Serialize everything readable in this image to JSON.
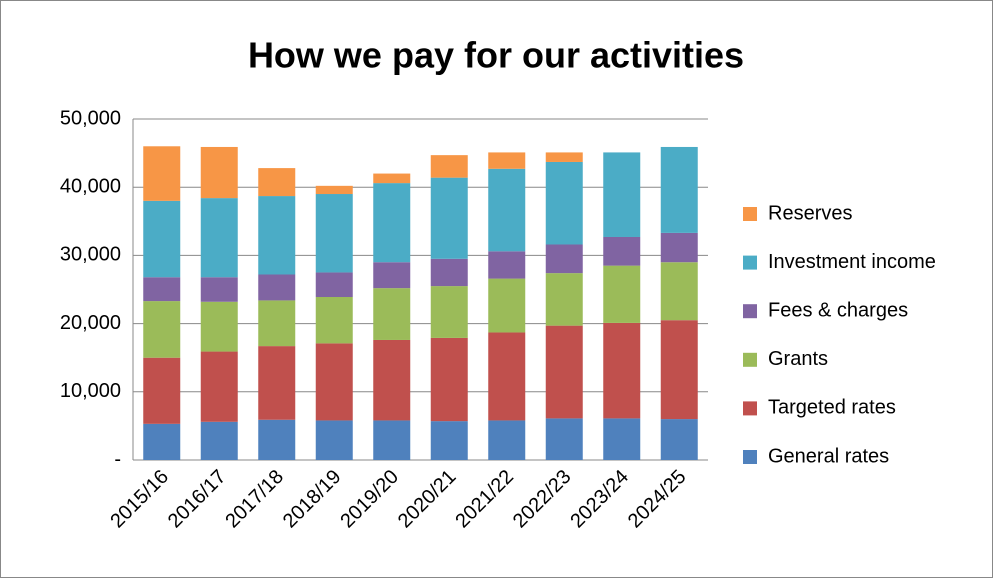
{
  "chart_data": {
    "type": "stacked_bar",
    "title": "How we pay for our activities",
    "categories": [
      "2015/16",
      "2016/17",
      "2017/18",
      "2018/19",
      "2019/20",
      "2020/21",
      "2021/22",
      "2022/23",
      "2023/24",
      "2024/25"
    ],
    "series": [
      {
        "name": "General rates",
        "color": "#4f81bd",
        "values": [
          5300,
          5600,
          5900,
          5800,
          5800,
          5700,
          5800,
          6100,
          6100,
          6000
        ]
      },
      {
        "name": "Targeted rates",
        "color": "#c0504d",
        "values": [
          9700,
          10300,
          10800,
          11300,
          11800,
          12200,
          12900,
          13600,
          14000,
          14500
        ]
      },
      {
        "name": "Grants",
        "color": "#9bbb59",
        "values": [
          8300,
          7300,
          6700,
          6800,
          7600,
          7600,
          7900,
          7700,
          8400,
          8500
        ]
      },
      {
        "name": "Fees & charges",
        "color": "#8064a2",
        "values": [
          3500,
          3600,
          3800,
          3600,
          3800,
          4000,
          4000,
          4200,
          4200,
          4300
        ]
      },
      {
        "name": "Investment income",
        "color": "#4bacc6",
        "values": [
          11200,
          11600,
          11500,
          11500,
          11600,
          11900,
          12100,
          12100,
          12400,
          12600
        ]
      },
      {
        "name": "Reserves",
        "color": "#f79646",
        "values": [
          8000,
          7500,
          4100,
          1200,
          1400,
          3300,
          2400,
          1400,
          0,
          0
        ]
      }
    ],
    "ylim": [
      0,
      50000
    ],
    "yticks": [
      {
        "value": 0,
        "label": "-"
      },
      {
        "value": 10000,
        "label": "10,000"
      },
      {
        "value": 20000,
        "label": "20,000"
      },
      {
        "value": 30000,
        "label": "30,000"
      },
      {
        "value": 40000,
        "label": "40,000"
      },
      {
        "value": 50000,
        "label": "50,000"
      }
    ],
    "grid": true,
    "legend": "right"
  }
}
